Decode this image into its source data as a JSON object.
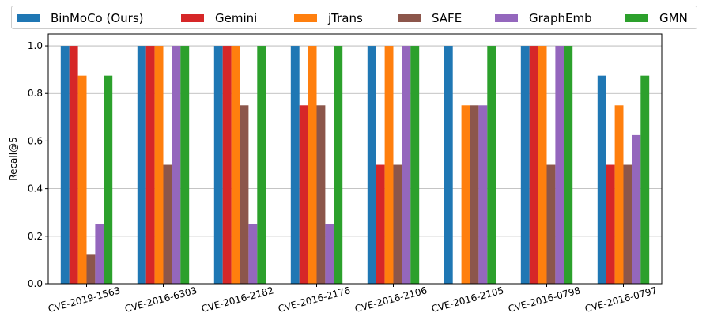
{
  "chart_data": {
    "type": "bar",
    "title": "",
    "xlabel": "",
    "ylabel": "Recall@5",
    "ylim": [
      0,
      1.05
    ],
    "yticks": [
      "0.0",
      "0.2",
      "0.4",
      "0.6",
      "0.8",
      "1.0"
    ],
    "ytick_values": [
      0,
      0.2,
      0.4,
      0.6,
      0.8,
      1.0
    ],
    "grid": "horizontal",
    "legend_position": "top",
    "categories": [
      "CVE-2019-1563",
      "CVE-2016-6303",
      "CVE-2016-2182",
      "CVE-2016-2176",
      "CVE-2016-2106",
      "CVE-2016-2105",
      "CVE-2016-0798",
      "CVE-2016-0797"
    ],
    "series": [
      {
        "name": "BinMoCo (Ours)",
        "color": "#1f77b4",
        "values": [
          1.0,
          1.0,
          1.0,
          1.0,
          1.0,
          1.0,
          1.0,
          0.875
        ]
      },
      {
        "name": "Gemini",
        "color": "#d62728",
        "values": [
          1.0,
          1.0,
          1.0,
          0.75,
          0.5,
          0.0,
          1.0,
          0.5
        ]
      },
      {
        "name": "jTrans",
        "color": "#ff7f0e",
        "values": [
          0.875,
          1.0,
          1.0,
          1.0,
          1.0,
          0.75,
          1.0,
          0.75
        ]
      },
      {
        "name": "SAFE",
        "color": "#8c564b",
        "values": [
          0.125,
          0.5,
          0.75,
          0.75,
          0.5,
          0.75,
          0.5,
          0.5
        ]
      },
      {
        "name": "GraphEmb",
        "color": "#9467bd",
        "values": [
          0.25,
          1.0,
          0.25,
          0.25,
          1.0,
          0.75,
          1.0,
          0.625
        ]
      },
      {
        "name": "GMN",
        "color": "#2ca02c",
        "values": [
          0.875,
          1.0,
          1.0,
          1.0,
          1.0,
          1.0,
          1.0,
          0.875
        ]
      }
    ]
  }
}
